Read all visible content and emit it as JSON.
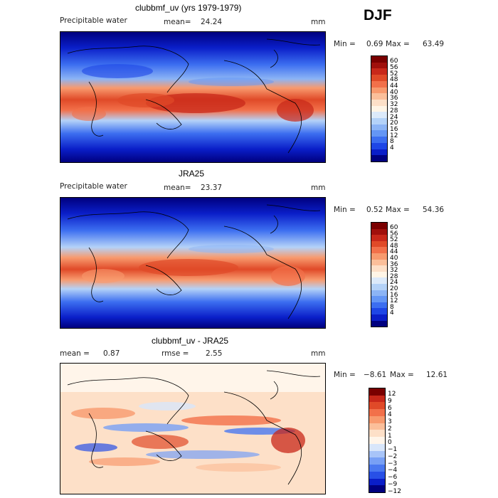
{
  "season": "DJF",
  "colors": {
    "field_scale": [
      "#00007f",
      "#0a1ec8",
      "#1e46e6",
      "#3c6ef0",
      "#6496f5",
      "#8cb4f5",
      "#b4d2f8",
      "#dceafa",
      "#fff5e6",
      "#fde0c8",
      "#fbbf9a",
      "#f89a6e",
      "#f2704a",
      "#e04a28",
      "#c8281a",
      "#a0100c",
      "#7a0000"
    ],
    "diff_scale": [
      "#00007f",
      "#0a1ec8",
      "#2850e6",
      "#4a78f0",
      "#78a0f5",
      "#a8c4f8",
      "#d8e6fa",
      "#fff5ea",
      "#fde0c8",
      "#fbbf9a",
      "#f89a6e",
      "#f2704a",
      "#e04a28",
      "#c8281a",
      "#7a0000"
    ]
  },
  "panels": [
    {
      "title": "clubbmf_uv (yrs 1979-1979)",
      "left_label": "Precipitable water",
      "mean_label": "mean=",
      "mean_value": "24.24",
      "units": "mm",
      "min_label": "Min =",
      "min_value": "0.69",
      "max_label": "Max =",
      "max_value": "63.49",
      "colorbar_labels": [
        "60",
        "56",
        "52",
        "48",
        "44",
        "40",
        "36",
        "32",
        "28",
        "24",
        "20",
        "16",
        "12",
        "8",
        "4"
      ]
    },
    {
      "title": "JRA25",
      "left_label": "Precipitable water",
      "mean_label": "mean=",
      "mean_value": "23.37",
      "units": "mm",
      "min_label": "Min =",
      "min_value": "0.52",
      "max_label": "Max =",
      "max_value": "54.36",
      "colorbar_labels": [
        "60",
        "56",
        "52",
        "48",
        "44",
        "40",
        "36",
        "32",
        "28",
        "24",
        "20",
        "16",
        "12",
        "8",
        "4"
      ]
    },
    {
      "title": "clubbmf_uv - JRA25",
      "mean_label": "mean =",
      "mean_value": "0.87",
      "rmse_label": "rmse =",
      "rmse_value": "2.55",
      "units": "mm",
      "min_label": "Min =",
      "min_value": "−8.61",
      "max_label": "Max =",
      "max_value": "12.61",
      "colorbar_labels": [
        "12",
        "9",
        "6",
        "4",
        "3",
        "2",
        "1",
        "0",
        "−1",
        "−2",
        "−3",
        "−4",
        "−6",
        "−9",
        "−12"
      ]
    }
  ]
}
